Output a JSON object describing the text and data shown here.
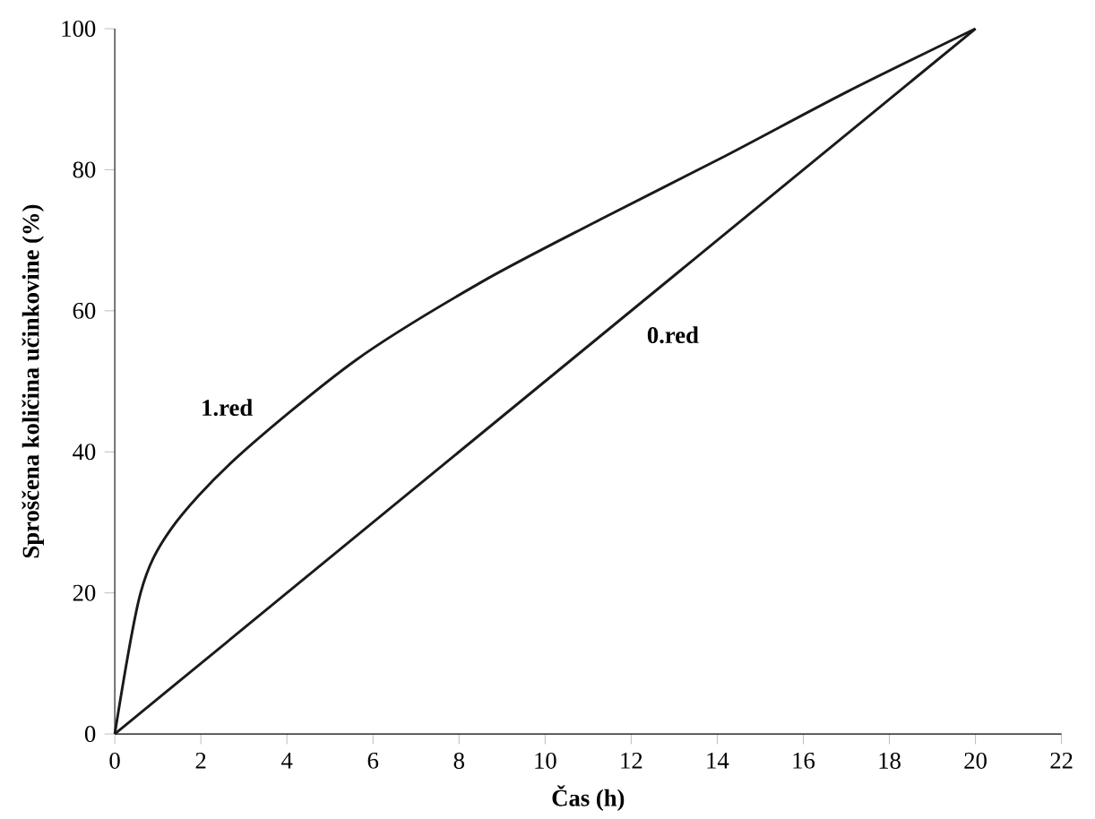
{
  "chart_data": {
    "type": "line",
    "xlabel": "Čas (h)",
    "ylabel": "Sproščena količina učinkovine (%)",
    "xlim": [
      0,
      22
    ],
    "ylim": [
      0,
      100
    ],
    "xticks": [
      0,
      2,
      4,
      6,
      8,
      10,
      12,
      14,
      16,
      18,
      20,
      22
    ],
    "yticks": [
      0,
      20,
      40,
      60,
      80,
      100
    ],
    "grid": false,
    "legend": false,
    "marker": "none",
    "line_style": "solid",
    "series": [
      {
        "name": "1.red",
        "color": "#1a1a1a",
        "x": [
          0,
          0.6,
          1.3,
          2.8,
          5.6,
          8.5,
          11.3,
          14.2,
          17,
          20
        ],
        "values": [
          0,
          20,
          29,
          39,
          53,
          64,
          73,
          82,
          91,
          100
        ]
      },
      {
        "name": "0.red",
        "color": "#1a1a1a",
        "x": [
          0,
          20
        ],
        "values": [
          0,
          100
        ]
      }
    ]
  }
}
